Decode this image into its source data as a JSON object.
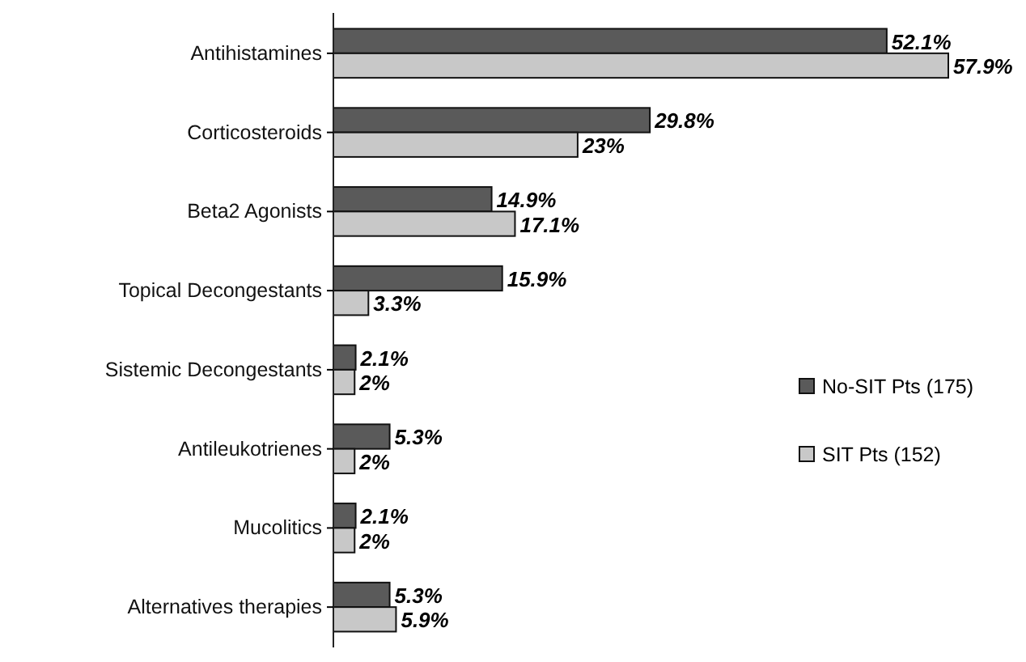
{
  "chart_data": {
    "type": "bar",
    "orientation": "horizontal",
    "data_labels": true,
    "legend": "right",
    "categories": [
      "Antihistamines",
      "Corticosteroids",
      "Beta2 Agonists",
      "Topical Decongestants",
      "Sistemic Decongestants",
      "Antileukotrienes",
      "Mucolitics",
      "Alternatives therapies"
    ],
    "series": [
      {
        "name": "No-SIT Pts (175)",
        "color": "#5a5a5a",
        "values": [
          52.1,
          29.8,
          14.9,
          15.9,
          2.1,
          5.3,
          2.1,
          5.3
        ],
        "value_labels": [
          "52.1%",
          "29.8%",
          "14.9%",
          "15.9%",
          "2.1%",
          "5.3%",
          "2.1%",
          "5.3%"
        ]
      },
      {
        "name": "SIT Pts (152)",
        "color": "#c8c8c8",
        "values": [
          57.9,
          23,
          17.1,
          3.3,
          2,
          2,
          2,
          5.9
        ],
        "value_labels": [
          "57.9%",
          "23%",
          "17.1%",
          "3.3%",
          "2%",
          "2%",
          "2%",
          "5.9%"
        ]
      }
    ]
  }
}
